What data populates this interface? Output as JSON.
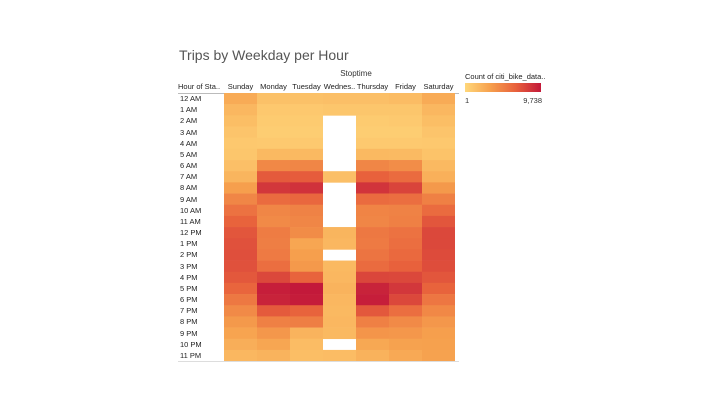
{
  "chart_data": {
    "type": "heatmap",
    "title": "Trips by Weekday per Hour",
    "column_group_label": "Stoptime",
    "row_header": "Hour of Sta..",
    "columns": [
      "Sunday",
      "Monday",
      "Tuesday",
      "Wednes..",
      "Thursday",
      "Friday",
      "Saturday"
    ],
    "rows": [
      "12 AM",
      "1 AM",
      "2 AM",
      "3 AM",
      "4 AM",
      "5 AM",
      "6 AM",
      "7 AM",
      "8 AM",
      "9 AM",
      "10 AM",
      "11 AM",
      "12 PM",
      "1 PM",
      "2 PM",
      "3 PM",
      "4 PM",
      "5 PM",
      "6 PM",
      "7 PM",
      "8 PM",
      "9 PM",
      "10 PM",
      "11 PM"
    ],
    "values": [
      [
        2600,
        1300,
        1300,
        1400,
        1400,
        1600,
        2600
      ],
      [
        1900,
        900,
        900,
        1000,
        1000,
        1000,
        1900
      ],
      [
        1500,
        700,
        700,
        null,
        700,
        800,
        1500
      ],
      [
        1100,
        600,
        600,
        null,
        600,
        600,
        1100
      ],
      [
        900,
        800,
        800,
        null,
        800,
        800,
        900
      ],
      [
        1000,
        1800,
        1800,
        null,
        1800,
        1700,
        1200
      ],
      [
        1400,
        4500,
        4600,
        null,
        4600,
        4200,
        1800
      ],
      [
        2000,
        6800,
        6700,
        1400,
        6500,
        6000,
        2300
      ],
      [
        3300,
        8400,
        8600,
        null,
        8500,
        7800,
        3600
      ],
      [
        4600,
        6000,
        6200,
        null,
        6000,
        5800,
        4900
      ],
      [
        5600,
        4600,
        4800,
        null,
        4700,
        4800,
        6000
      ],
      [
        6400,
        4400,
        4600,
        null,
        4600,
        4900,
        7000
      ],
      [
        7000,
        5100,
        4300,
        2000,
        5300,
        5600,
        7600
      ],
      [
        7200,
        5000,
        2900,
        1900,
        5200,
        5800,
        7600
      ],
      [
        7300,
        5200,
        3300,
        null,
        5500,
        6100,
        7500
      ],
      [
        7200,
        5800,
        3600,
        1800,
        6000,
        6500,
        7400
      ],
      [
        6900,
        7600,
        6400,
        1900,
        7700,
        7600,
        7000
      ],
      [
        6300,
        9500,
        9738,
        2100,
        9300,
        8400,
        6400
      ],
      [
        5300,
        9300,
        9600,
        1900,
        9500,
        7600,
        5400
      ],
      [
        4400,
        6800,
        6400,
        1800,
        6900,
        5800,
        4500
      ],
      [
        3600,
        4900,
        5000,
        1900,
        4900,
        4400,
        3700
      ],
      [
        3000,
        3700,
        2100,
        1800,
        3800,
        3700,
        3300
      ],
      [
        2400,
        2900,
        1600,
        null,
        2800,
        3100,
        3200
      ],
      [
        1900,
        2100,
        1500,
        1600,
        2200,
        2700,
        3100
      ]
    ],
    "color_scale": {
      "label": "Count of citi_bike_data..",
      "min": 1,
      "max": 9738,
      "colors": [
        "#ffd77a",
        "#f6a04d",
        "#e8613c",
        "#c3193a"
      ]
    }
  },
  "legend": {
    "title": "Count of citi_bike_data..",
    "min_label": "1",
    "max_label": "9,738"
  }
}
